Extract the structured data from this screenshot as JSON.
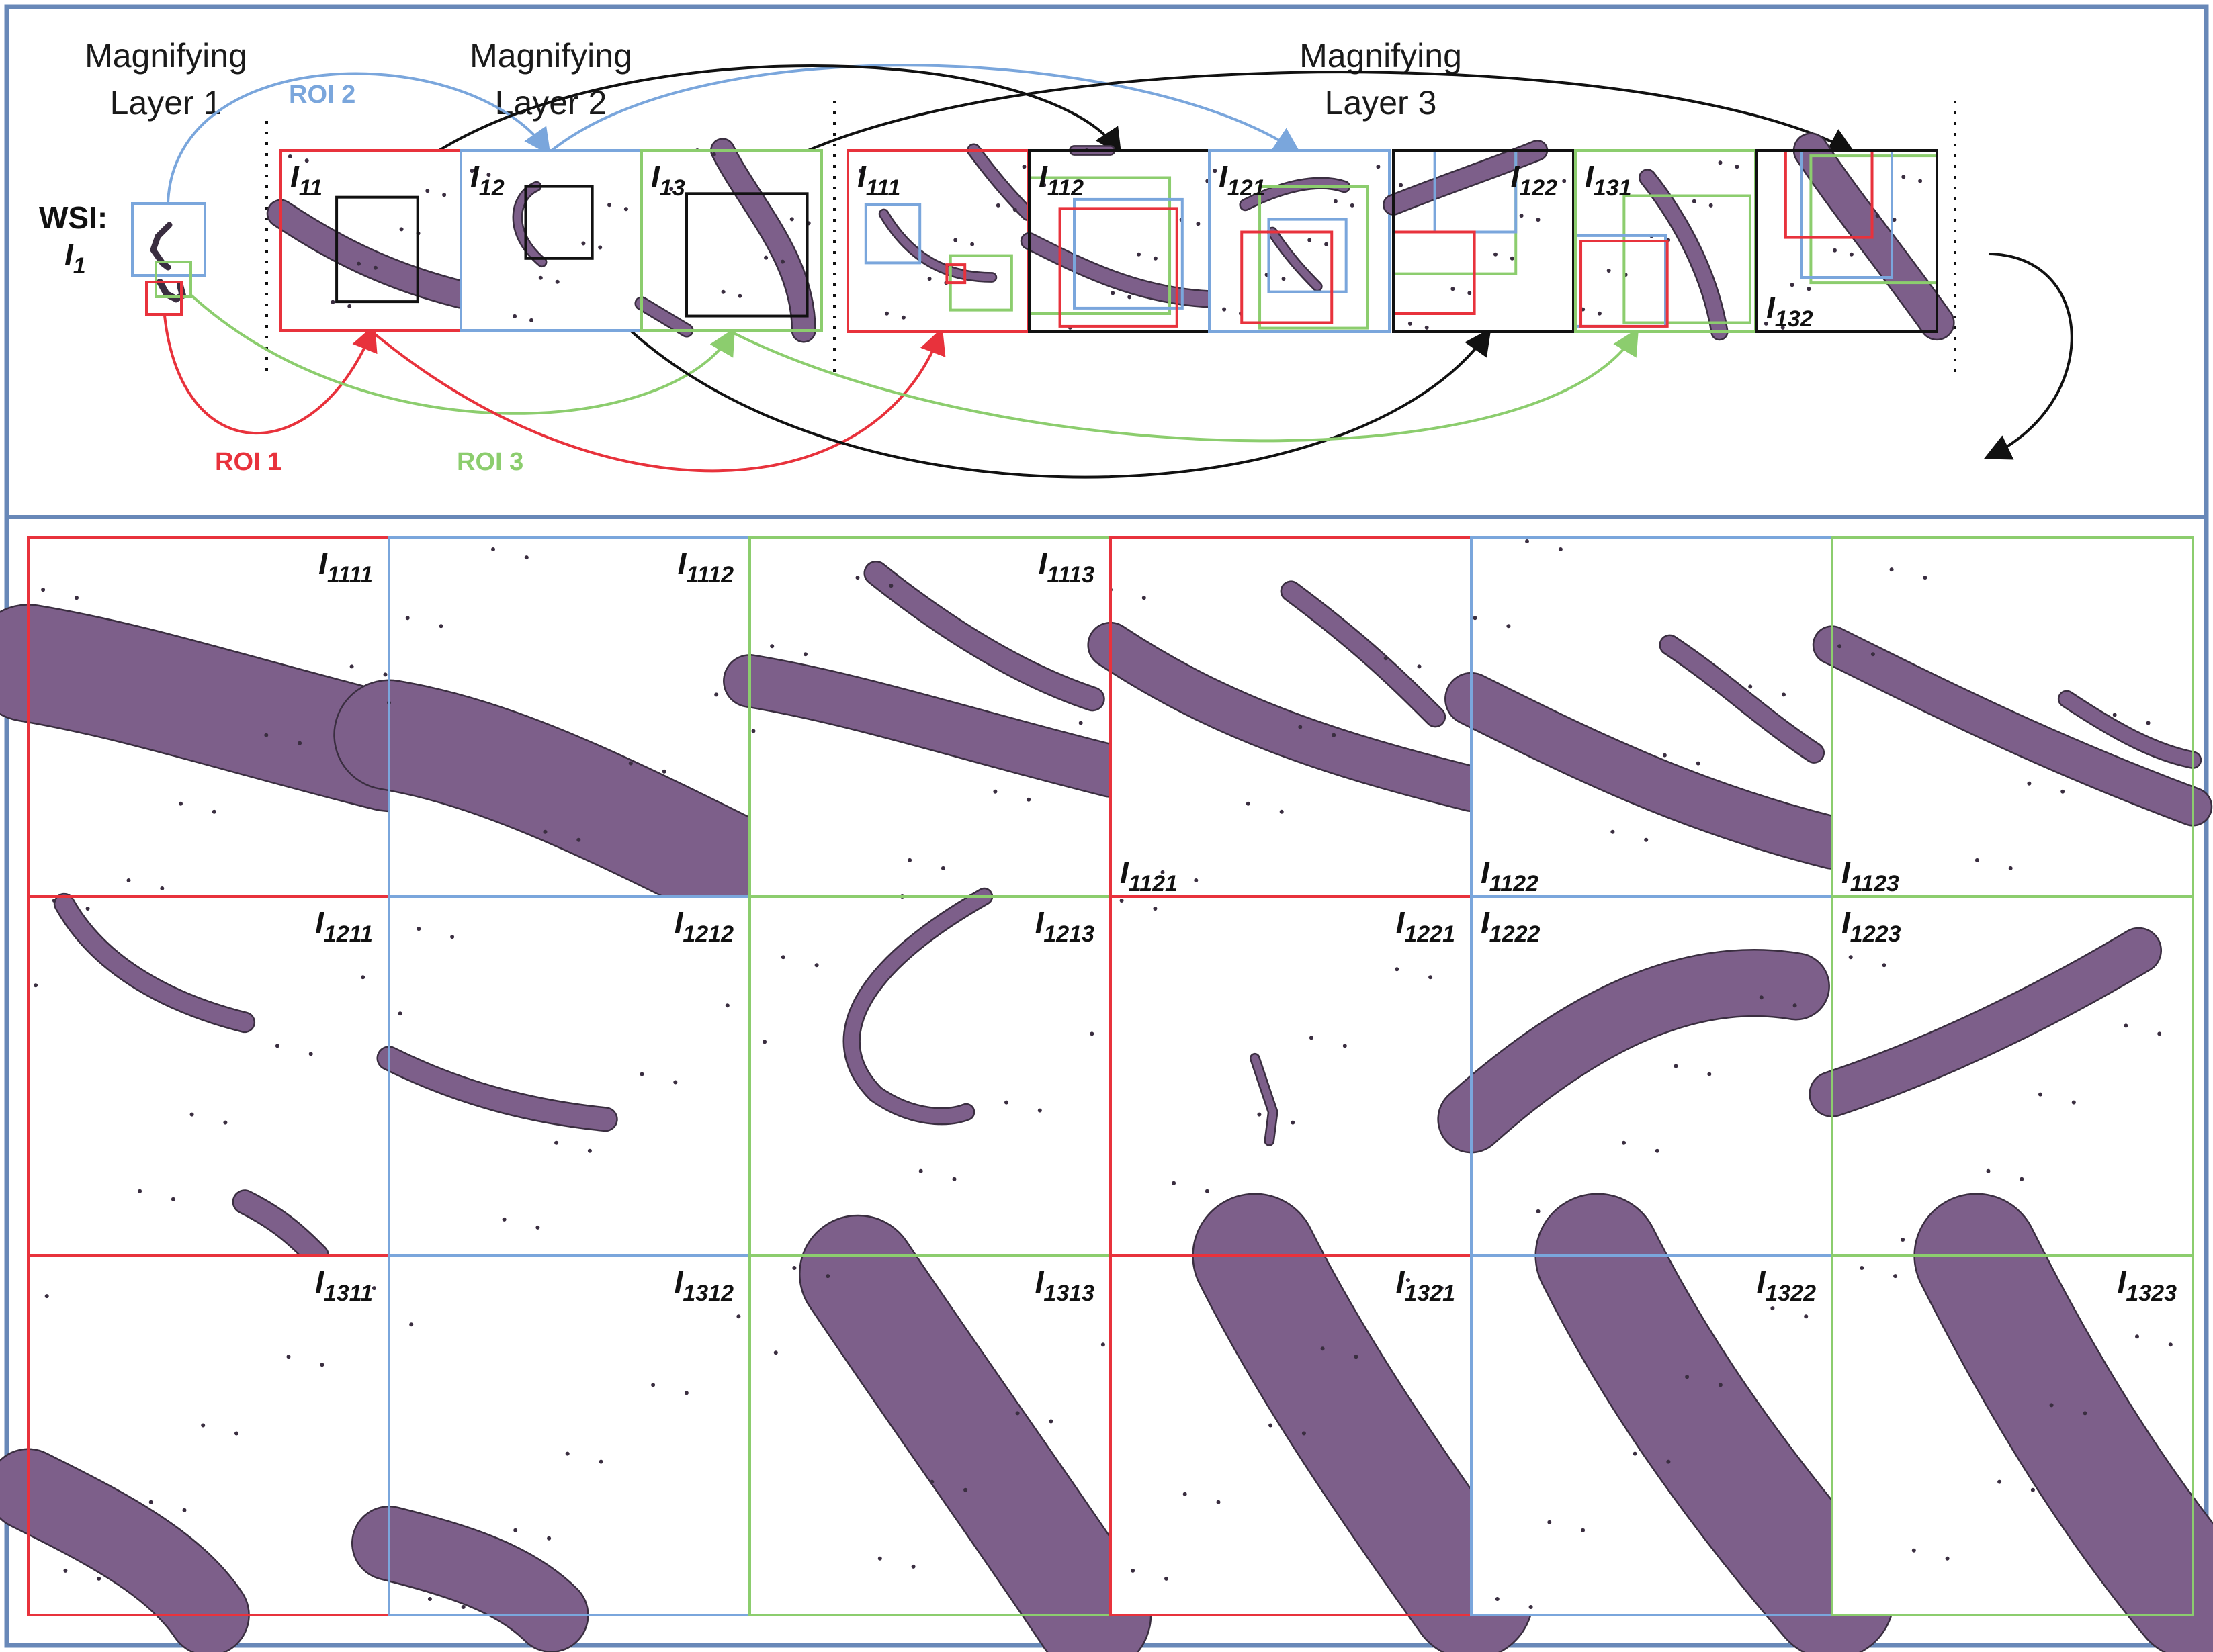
{
  "colors": {
    "roi1": "#e8323c",
    "roi2": "#7aa6dc",
    "roi3": "#8ccd6e",
    "frame": "#6888b8",
    "tissue": "#7d5f8a",
    "tissue_dark": "#3a2e40",
    "tissue_pink": "#b36a78",
    "black": "#111111"
  },
  "layer_titles": {
    "layer1": [
      "Magnifying",
      "Layer 1"
    ],
    "layer2": [
      "Magnifying",
      "Layer 2"
    ],
    "layer3": [
      "Magnifying",
      "Layer 3"
    ]
  },
  "wsi": {
    "prefix": "WSI:",
    "label": "I",
    "sub": "1"
  },
  "roi_labels": {
    "roi1": "ROI 1",
    "roi2": "ROI 2",
    "roi3": "ROI 3"
  },
  "layer2_tiles": [
    {
      "sub": "11",
      "border": "roi1"
    },
    {
      "sub": "12",
      "border": "roi2"
    },
    {
      "sub": "13",
      "border": "roi3"
    }
  ],
  "layer3_tiles": [
    {
      "sub": "111",
      "border": "roi1",
      "label_pos": "tl"
    },
    {
      "sub": "112",
      "border": "black",
      "label_pos": "tl"
    },
    {
      "sub": "121",
      "border": "roi2",
      "label_pos": "tl"
    },
    {
      "sub": "122",
      "border": "black",
      "label_pos": "tr"
    },
    {
      "sub": "131",
      "border": "roi3",
      "label_pos": "tl"
    },
    {
      "sub": "132",
      "border": "black",
      "label_pos": "bl"
    }
  ],
  "grid_rows": [
    [
      {
        "sub": "1111",
        "border": "roi1",
        "label_pos": "tr"
      },
      {
        "sub": "1112",
        "border": "roi2",
        "label_pos": "tr"
      },
      {
        "sub": "1113",
        "border": "roi3",
        "label_pos": "tr"
      },
      {
        "sub": "1121",
        "border": "roi1",
        "label_pos": "bl"
      },
      {
        "sub": "1122",
        "border": "roi2",
        "label_pos": "bl"
      },
      {
        "sub": "1123",
        "border": "roi3",
        "label_pos": "bl"
      }
    ],
    [
      {
        "sub": "1211",
        "border": "roi1",
        "label_pos": "tr"
      },
      {
        "sub": "1212",
        "border": "roi2",
        "label_pos": "tr"
      },
      {
        "sub": "1213",
        "border": "roi3",
        "label_pos": "tr"
      },
      {
        "sub": "1221",
        "border": "roi1",
        "label_pos": "tr"
      },
      {
        "sub": "1222",
        "border": "roi2",
        "label_pos": "tl"
      },
      {
        "sub": "1223",
        "border": "roi3",
        "label_pos": "tl"
      }
    ],
    [
      {
        "sub": "1311",
        "border": "roi1",
        "label_pos": "tr"
      },
      {
        "sub": "1312",
        "border": "roi2",
        "label_pos": "tr"
      },
      {
        "sub": "1313",
        "border": "roi3",
        "label_pos": "tr"
      },
      {
        "sub": "1321",
        "border": "roi1",
        "label_pos": "tr"
      },
      {
        "sub": "1322",
        "border": "roi2",
        "label_pos": "tr"
      },
      {
        "sub": "1323",
        "border": "roi3",
        "label_pos": "tr"
      }
    ]
  ]
}
